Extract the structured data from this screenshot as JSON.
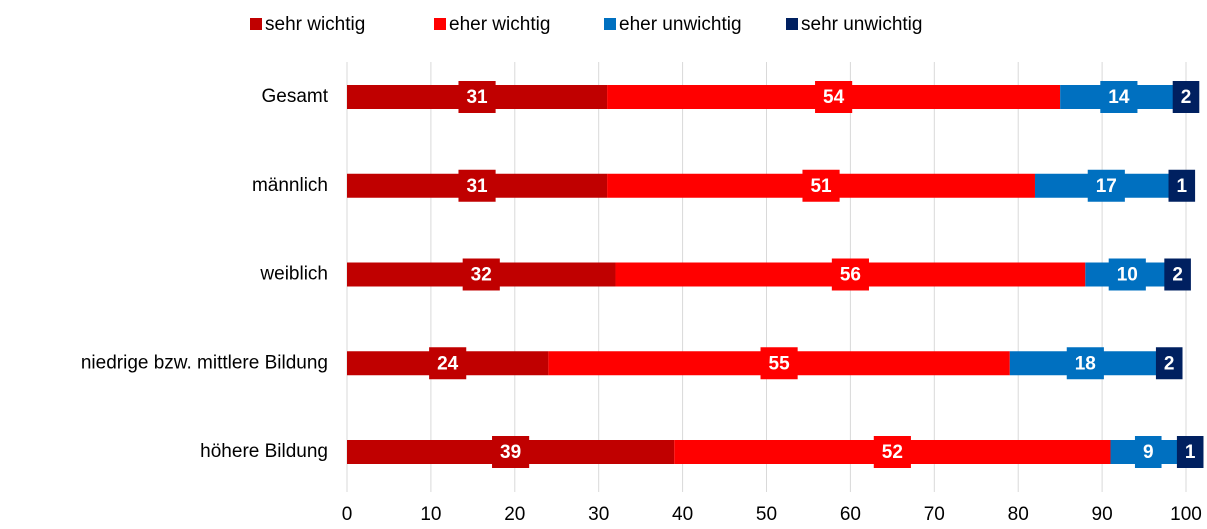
{
  "chart_data": {
    "type": "stacked_bar_horizontal",
    "categories": [
      "Gesamt",
      "männlich",
      "weiblich",
      "niedrige bzw. mittlere Bildung",
      "höhere Bildung"
    ],
    "series": [
      {
        "name": "sehr wichtig",
        "color": "#c00000",
        "values": [
          31,
          31,
          32,
          24,
          39
        ]
      },
      {
        "name": "eher wichtig",
        "color": "#ff0000",
        "values": [
          54,
          51,
          56,
          55,
          52
        ]
      },
      {
        "name": "eher unwichtig",
        "color": "#0070c0",
        "values": [
          14,
          17,
          10,
          18,
          9
        ]
      },
      {
        "name": "sehr unwichtig",
        "color": "#002060",
        "values": [
          2,
          1,
          2,
          2,
          1
        ]
      }
    ],
    "xlim": [
      0,
      100
    ],
    "xticks": [
      0,
      10,
      20,
      30,
      40,
      50,
      60,
      70,
      80,
      90,
      100
    ],
    "grid": true,
    "legend": "top"
  }
}
